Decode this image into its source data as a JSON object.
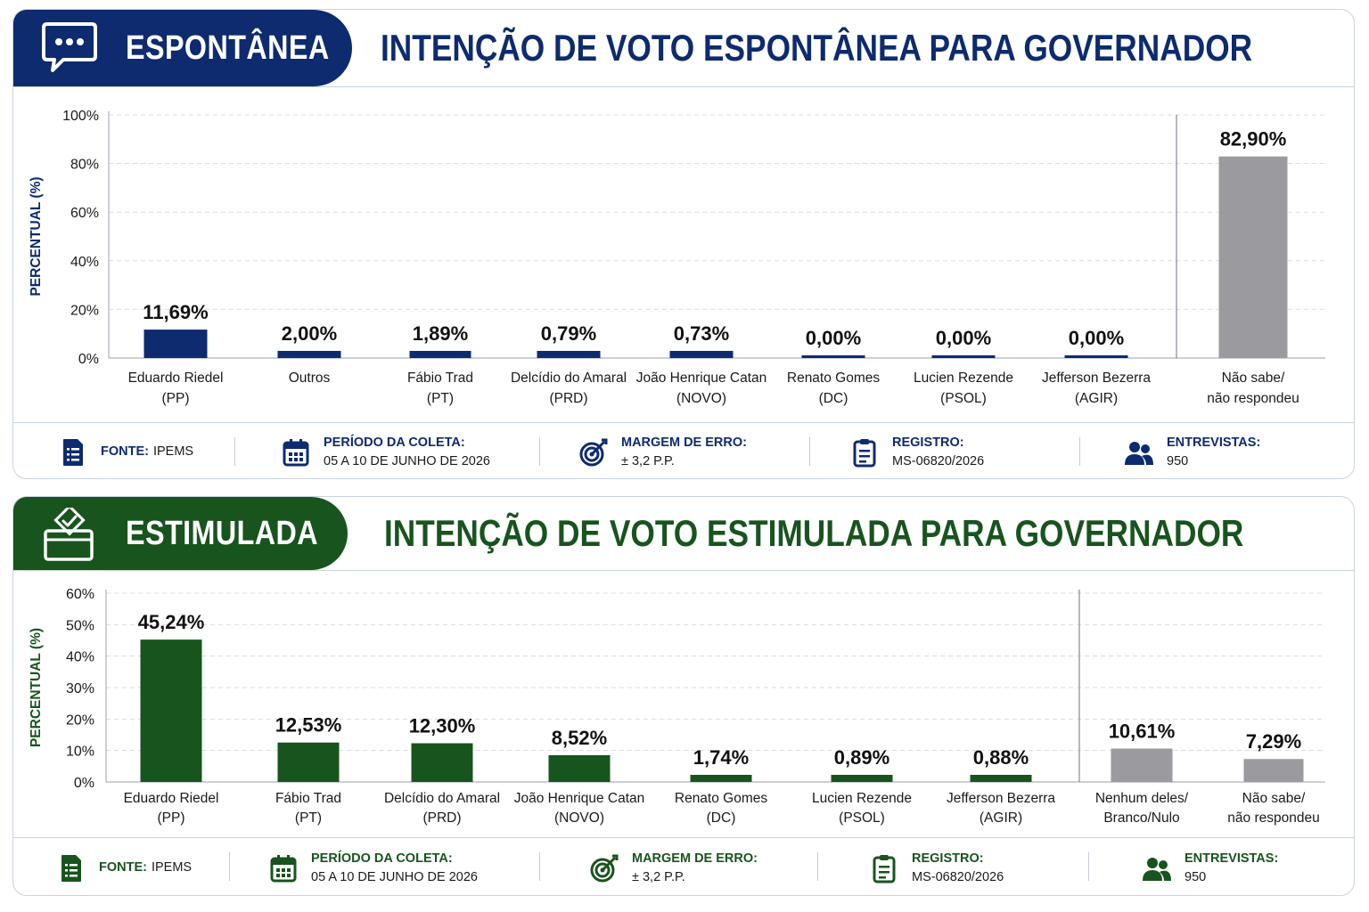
{
  "panels": [
    {
      "id": "spontaneous",
      "badge_label": "ESPONTÂNEA",
      "badge_icon": "chat-bubble-icon",
      "title": "INTENÇÃO DE VOTO ESPONTÂNEA PARA GOVERNADOR",
      "accent_color": "#0d2b6e",
      "footer": {
        "source_label": "FONTE:",
        "source_value": "IPEMS",
        "period_label": "PERÍODO DA COLETA:",
        "period_value": "05 A 10 DE JUNHO DE 2026",
        "margin_label": "MARGEM DE ERRO:",
        "margin_value": "± 3,2 P.P.",
        "registry_label": "REGISTRO:",
        "registry_value": "MS-06820/2026",
        "interviews_label": "ENTREVISTAS:",
        "interviews_value": "950"
      }
    },
    {
      "id": "stimulated",
      "badge_label": "ESTIMULADA",
      "badge_icon": "ballot-box-icon",
      "title": "INTENÇÃO DE VOTO ESTIMULADA PARA GOVERNADOR",
      "accent_color": "#18541e",
      "footer": {
        "source_label": "FONTE:",
        "source_value": "IPEMS",
        "period_label": "PERÍODO DA COLETA:",
        "period_value": "05 A 10 DE JUNHO DE 2026",
        "margin_label": "MARGEM DE ERRO:",
        "margin_value": "± 3,2 P.P.",
        "registry_label": "REGISTRO:",
        "registry_value": "MS-06820/2026",
        "interviews_label": "ENTREVISTAS:",
        "interviews_value": "950"
      }
    }
  ],
  "chart_data": [
    {
      "type": "bar",
      "title": "INTENÇÃO DE VOTO ESPONTÂNEA PARA GOVERNADOR",
      "ylabel": "PERCENTUAL (%)",
      "xlabel": "",
      "ylim": [
        0,
        100
      ],
      "yticks": [
        "0%",
        "20%",
        "40%",
        "60%",
        "80%",
        "100%"
      ],
      "ytick_values": [
        0,
        20,
        40,
        60,
        80,
        100
      ],
      "grid": "horizontal dashed",
      "categories": [
        [
          "Eduardo Riedel",
          "(PP)"
        ],
        [
          "Outros"
        ],
        [
          "Fábio Trad",
          "(PT)"
        ],
        [
          "Delcídio do Amaral",
          "(PRD)"
        ],
        [
          "João Henrique Catan",
          "(NOVO)"
        ],
        [
          "Renato Gomes",
          "(DC)"
        ],
        [
          "Lucien Rezende",
          "(PSOL)"
        ],
        [
          "Jefferson Bezerra",
          "(AGIR)"
        ],
        [
          "Não sabe/",
          "não respondeu"
        ]
      ],
      "values": [
        11.69,
        2.0,
        1.89,
        0.79,
        0.73,
        0.0,
        0.0,
        0.0,
        82.9
      ],
      "value_labels": [
        "11,69%",
        "2,00%",
        "1,89%",
        "0,79%",
        "0,73%",
        "0,00%",
        "0,00%",
        "0,00%",
        "82,90%"
      ],
      "bar_colors": [
        "#0d2b6e",
        "#0d2b6e",
        "#0d2b6e",
        "#0d2b6e",
        "#0d2b6e",
        "#0d2b6e",
        "#0d2b6e",
        "#0d2b6e",
        "#9b9b9f"
      ],
      "separator_before_index": 8
    },
    {
      "type": "bar",
      "title": "INTENÇÃO DE VOTO ESTIMULADA PARA GOVERNADOR",
      "ylabel": "PERCENTUAL (%)",
      "xlabel": "",
      "ylim": [
        0,
        60
      ],
      "yticks": [
        "0%",
        "10%",
        "20%",
        "30%",
        "40%",
        "50%",
        "60%"
      ],
      "ytick_values": [
        0,
        10,
        20,
        30,
        40,
        50,
        60
      ],
      "grid": "horizontal dashed",
      "categories": [
        [
          "Eduardo Riedel",
          "(PP)"
        ],
        [
          "Fábio Trad",
          "(PT)"
        ],
        [
          "Delcídio do Amaral",
          "(PRD)"
        ],
        [
          "João Henrique Catan",
          "(NOVO)"
        ],
        [
          "Renato Gomes",
          "(DC)"
        ],
        [
          "Lucien Rezende",
          "(PSOL)"
        ],
        [
          "Jefferson Bezerra",
          "(AGIR)"
        ],
        [
          "Nenhum deles/",
          "Branco/Nulo"
        ],
        [
          "Não sabe/",
          "não respondeu"
        ]
      ],
      "values": [
        45.24,
        12.53,
        12.3,
        8.52,
        1.74,
        0.89,
        0.88,
        10.61,
        7.29
      ],
      "value_labels": [
        "45,24%",
        "12,53%",
        "12,30%",
        "8,52%",
        "1,74%",
        "0,89%",
        "0,88%",
        "10,61%",
        "7,29%"
      ],
      "bar_colors": [
        "#18541e",
        "#18541e",
        "#18541e",
        "#18541e",
        "#18541e",
        "#18541e",
        "#18541e",
        "#9b9b9f",
        "#9b9b9f"
      ],
      "separator_before_index": 7
    }
  ]
}
